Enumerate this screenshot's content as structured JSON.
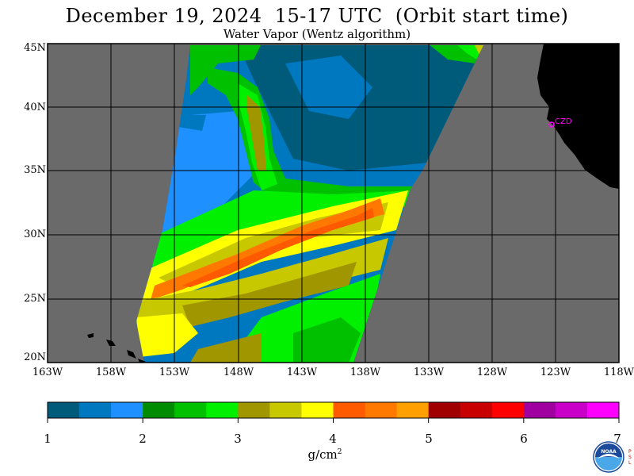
{
  "header": {
    "title": "December 19, 2024  15-17 UTC  (Orbit start time)",
    "subtitle": "Water Vapor (Wentz algorithm)"
  },
  "map": {
    "lat_labels": [
      "45N",
      "40N",
      "35N",
      "30N",
      "25N",
      "20N"
    ],
    "lon_labels": [
      "163W",
      "158W",
      "153W",
      "148W",
      "143W",
      "138W",
      "133W",
      "128W",
      "123W",
      "118W"
    ],
    "station_label": "CZD",
    "colors": {
      "no_data": "#6a6a6a",
      "land": "#000000",
      "grid": "#000000",
      "station": "#ff00ff"
    }
  },
  "colorbar": {
    "tick_labels": [
      "1",
      "2",
      "3",
      "4",
      "5",
      "6",
      "7"
    ],
    "units_base": "g/cm",
    "units_exp": "2",
    "colors": [
      "#005a7a",
      "#0078bf",
      "#1e90ff",
      "#008c00",
      "#00c000",
      "#00f000",
      "#a09600",
      "#c8c800",
      "#ffff00",
      "#ff5a00",
      "#ff7800",
      "#ffa000",
      "#a00000",
      "#c80000",
      "#ff0000",
      "#a000a0",
      "#c800c8",
      "#ff00ff"
    ]
  },
  "logo": {
    "text": "NOAA",
    "side_letters": "PSL"
  }
}
